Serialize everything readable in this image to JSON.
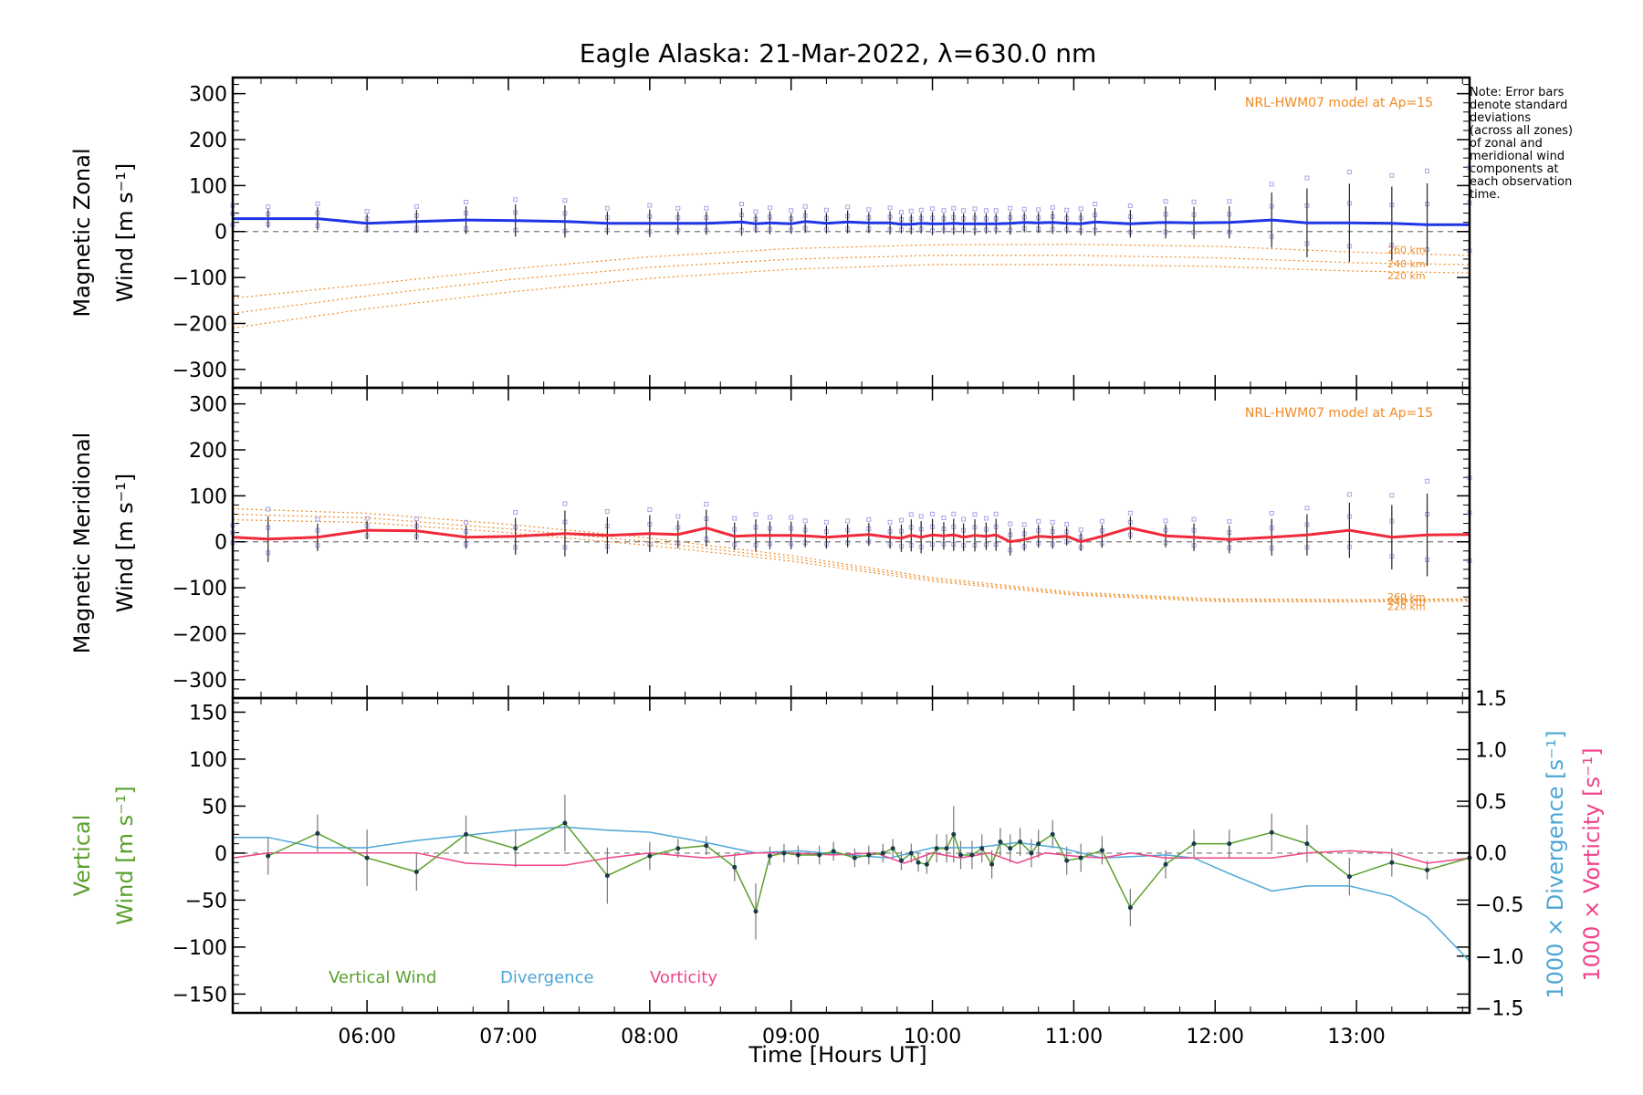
{
  "chart_data": {
    "type": "line",
    "title": "Eagle Alaska: 21-Mar-2022, λ=630.0 nm",
    "note": [
      "Note: Error bars",
      "denote standard",
      "deviations",
      "(across all zones)",
      "of zonal and",
      "meridional wind",
      "components at",
      "each observation",
      "time."
    ],
    "xlabel": "Time [Hours UT]",
    "xlim": [
      5.05,
      13.8
    ],
    "xticks": [
      6,
      7,
      8,
      9,
      10,
      11,
      12,
      13
    ],
    "xtick_labels": [
      "06:00",
      "07:00",
      "08:00",
      "09:00",
      "10:00",
      "11:00",
      "12:00",
      "13:00"
    ],
    "colors": {
      "zonal": "#1f35e6",
      "meridional": "#f02a3a",
      "model": "#f08a24",
      "vertical": "#5aa02c",
      "divergence": "#4da6d6",
      "vorticity": "#f0448a",
      "zone_points": "#a9a3e8",
      "error_bar": "#222222"
    },
    "panels": [
      {
        "id": "zonal",
        "ylabel_line1": "Magnetic Zonal",
        "ylabel_line2": "Wind [m s⁻¹]",
        "ylim": [
          -340,
          335
        ],
        "yticks": [
          -300,
          -200,
          -100,
          0,
          100,
          200,
          300
        ],
        "ytick_labels": [
          "−300",
          "−200",
          "−100",
          "0",
          "100",
          "200",
          "300"
        ],
        "model_label": "NRL-HWM07 model at Ap=15",
        "altitude_labels": [
          "260 km",
          "240 km",
          "220 km"
        ],
        "series": {
          "x": [
            5.05,
            5.3,
            5.65,
            6.0,
            6.35,
            6.7,
            7.05,
            7.4,
            7.7,
            8.0,
            8.2,
            8.4,
            8.65,
            8.75,
            8.85,
            9.0,
            9.1,
            9.25,
            9.4,
            9.55,
            9.7,
            9.78,
            9.85,
            9.92,
            10.0,
            10.08,
            10.15,
            10.22,
            10.3,
            10.38,
            10.45,
            10.55,
            10.65,
            10.75,
            10.85,
            10.95,
            11.05,
            11.15,
            11.4,
            11.65,
            11.85,
            12.1,
            12.4,
            12.65,
            12.95,
            13.25,
            13.5,
            13.8
          ],
          "values": [
            28,
            28,
            28,
            18,
            22,
            25,
            24,
            22,
            18,
            18,
            18,
            18,
            21,
            17,
            19,
            17,
            22,
            18,
            21,
            19,
            19,
            16,
            16,
            18,
            17,
            17,
            18,
            17,
            17,
            17,
            17,
            18,
            20,
            19,
            20,
            18,
            17,
            21,
            17,
            20,
            19,
            20,
            25,
            19,
            19,
            18,
            15,
            15
          ],
          "error": [
            22,
            20,
            25,
            20,
            25,
            30,
            35,
            35,
            25,
            30,
            25,
            25,
            30,
            20,
            25,
            22,
            25,
            22,
            25,
            22,
            25,
            20,
            22,
            22,
            25,
            22,
            25,
            22,
            25,
            22,
            22,
            25,
            22,
            22,
            25,
            22,
            25,
            30,
            30,
            35,
            35,
            35,
            60,
            75,
            85,
            80,
            90,
            95
          ]
        },
        "models": [
          {
            "altitude": "260 km",
            "x": [
              5.05,
              6,
              7,
              8,
              9,
              10,
              11,
              12,
              13,
              13.8
            ],
            "values": [
              -145,
              -115,
              -82,
              -55,
              -37,
              -29,
              -28,
              -32,
              -45,
              -52
            ]
          },
          {
            "altitude": "240 km",
            "x": [
              5.05,
              6,
              7,
              8,
              9,
              10,
              11,
              12,
              13,
              13.8
            ],
            "values": [
              -178,
              -140,
              -105,
              -78,
              -60,
              -52,
              -52,
              -57,
              -68,
              -72
            ]
          },
          {
            "altitude": "220 km",
            "x": [
              5.05,
              6,
              7,
              8,
              9,
              10,
              11,
              12,
              13,
              13.8
            ],
            "values": [
              -210,
              -168,
              -132,
              -102,
              -82,
              -72,
              -72,
              -76,
              -86,
              -90
            ]
          }
        ]
      },
      {
        "id": "meridional",
        "ylabel_line1": "Magnetic Meridional",
        "ylabel_line2": "Wind [m s⁻¹]",
        "ylim": [
          -340,
          335
        ],
        "yticks": [
          -300,
          -200,
          -100,
          0,
          100,
          200,
          300
        ],
        "ytick_labels": [
          "−300",
          "−200",
          "−100",
          "0",
          "100",
          "200",
          "300"
        ],
        "model_label": "NRL-HWM07 model at Ap=15",
        "altitude_labels": [
          "260 km",
          "240 km",
          "220 km"
        ],
        "series": {
          "x": [
            5.05,
            5.3,
            5.65,
            6.0,
            6.35,
            6.7,
            7.05,
            7.4,
            7.7,
            8.0,
            8.2,
            8.4,
            8.6,
            8.75,
            8.85,
            9.0,
            9.1,
            9.25,
            9.4,
            9.55,
            9.7,
            9.78,
            9.85,
            9.92,
            10.0,
            10.08,
            10.15,
            10.22,
            10.3,
            10.38,
            10.45,
            10.55,
            10.65,
            10.75,
            10.85,
            10.95,
            11.05,
            11.2,
            11.4,
            11.65,
            11.85,
            12.1,
            12.4,
            12.65,
            12.95,
            13.25,
            13.5,
            13.8
          ],
          "values": [
            10,
            6,
            10,
            25,
            24,
            10,
            12,
            18,
            14,
            18,
            16,
            30,
            12,
            14,
            14,
            14,
            13,
            10,
            13,
            16,
            10,
            8,
            14,
            10,
            15,
            13,
            15,
            10,
            14,
            12,
            15,
            0,
            5,
            12,
            10,
            12,
            0,
            12,
            30,
            13,
            10,
            5,
            10,
            15,
            25,
            10,
            15,
            16
          ],
          "error": [
            20,
            50,
            30,
            20,
            20,
            25,
            40,
            50,
            40,
            40,
            30,
            40,
            30,
            35,
            30,
            30,
            25,
            25,
            25,
            25,
            25,
            30,
            35,
            35,
            35,
            30,
            35,
            30,
            35,
            30,
            35,
            30,
            25,
            25,
            25,
            20,
            20,
            25,
            25,
            25,
            30,
            30,
            40,
            45,
            60,
            70,
            90,
            95
          ]
        },
        "models": [
          {
            "altitude": "260 km",
            "x": [
              5.05,
              6,
              7,
              8,
              9,
              10,
              11,
              12,
              13,
              13.8
            ],
            "values": [
              72,
              62,
              38,
              8,
              -30,
              -78,
              -110,
              -124,
              -126,
              -124
            ]
          },
          {
            "altitude": "240 km",
            "x": [
              5.05,
              6,
              7,
              8,
              9,
              10,
              11,
              12,
              13,
              13.8
            ],
            "values": [
              60,
              52,
              28,
              0,
              -36,
              -82,
              -113,
              -127,
              -128,
              -126
            ]
          },
          {
            "altitude": "220 km",
            "x": [
              5.05,
              6,
              7,
              8,
              9,
              10,
              11,
              12,
              13,
              13.8
            ],
            "values": [
              48,
              42,
              20,
              -8,
              -42,
              -86,
              -116,
              -130,
              -131,
              -129
            ]
          }
        ]
      },
      {
        "id": "vertical",
        "ylabel_line1": "Vertical",
        "ylabel_line2_prefix": "Wind ",
        "ylabel_line2_unit": "[m s⁻¹]",
        "ylim": [
          -170,
          165
        ],
        "yticks": [
          -150,
          -100,
          -50,
          0,
          50,
          100,
          150
        ],
        "ytick_labels": [
          "−150",
          "−100",
          "−50",
          "0",
          "50",
          "100",
          "150"
        ],
        "right_ylim": [
          -1.55,
          1.5
        ],
        "right_yticks": [
          -1.5,
          -1.0,
          -0.5,
          0.0,
          0.5,
          1.0,
          1.5
        ],
        "right_ytick_labels": [
          "−1.5",
          "−1.0",
          "−0.5",
          "0.0",
          "0.5",
          "1.0",
          "1.5"
        ],
        "right_ylabel_div_prefix": "1000 × Divergence ",
        "right_ylabel_div_unit": "[s⁻¹]",
        "right_ylabel_vort_prefix": "1000 × Vorticity ",
        "right_ylabel_vort_unit": "[s⁻¹]",
        "legend": [
          "Vertical Wind",
          "Divergence",
          "Vorticity"
        ],
        "vertical_wind": {
          "x": [
            5.3,
            5.65,
            6.0,
            6.35,
            6.7,
            7.05,
            7.4,
            7.7,
            8.0,
            8.2,
            8.4,
            8.6,
            8.75,
            8.85,
            8.95,
            9.05,
            9.2,
            9.3,
            9.45,
            9.55,
            9.65,
            9.72,
            9.78,
            9.85,
            9.9,
            9.96,
            10.03,
            10.1,
            10.15,
            10.2,
            10.28,
            10.35,
            10.42,
            10.48,
            10.55,
            10.62,
            10.7,
            10.75,
            10.85,
            10.95,
            11.05,
            11.2,
            11.4,
            11.65,
            11.85,
            12.1,
            12.4,
            12.65,
            12.95,
            13.25,
            13.5,
            13.8
          ],
          "values": [
            -3,
            21,
            -5,
            -20,
            20,
            5,
            32,
            -24,
            -3,
            5,
            8,
            -15,
            -62,
            -3,
            0,
            -2,
            -2,
            2,
            -5,
            -2,
            0,
            5,
            -8,
            0,
            -10,
            -12,
            5,
            5,
            20,
            -2,
            -2,
            5,
            -12,
            12,
            5,
            12,
            0,
            10,
            20,
            -8,
            -5,
            3,
            -58,
            -12,
            10,
            10,
            22,
            10,
            -25,
            -10,
            -18,
            -5
          ],
          "error": [
            20,
            20,
            30,
            20,
            20,
            20,
            30,
            30,
            15,
            10,
            10,
            15,
            30,
            10,
            10,
            10,
            10,
            10,
            10,
            10,
            10,
            10,
            10,
            10,
            10,
            10,
            15,
            15,
            30,
            15,
            15,
            15,
            15,
            15,
            15,
            15,
            15,
            15,
            15,
            15,
            15,
            15,
            20,
            15,
            15,
            15,
            20,
            20,
            20,
            15,
            10,
            10
          ]
        },
        "divergence": {
          "x": [
            5.05,
            5.3,
            5.65,
            6.0,
            6.35,
            6.7,
            7.05,
            7.4,
            7.7,
            8.0,
            8.4,
            8.75,
            9.05,
            9.4,
            9.7,
            10.0,
            10.3,
            10.6,
            10.9,
            11.2,
            11.65,
            11.85,
            12.1,
            12.4,
            12.65,
            12.95,
            13.25,
            13.5,
            13.8
          ],
          "values": [
            0.15,
            0.15,
            0.05,
            0.05,
            0.12,
            0.17,
            0.22,
            0.25,
            0.22,
            0.2,
            0.1,
            0.0,
            0.02,
            -0.02,
            -0.05,
            0.05,
            0.05,
            0.1,
            0.05,
            -0.05,
            -0.02,
            -0.05,
            -0.2,
            -0.37,
            -0.32,
            -0.32,
            -0.42,
            -0.62,
            -1.05
          ]
        },
        "vorticity": {
          "x": [
            5.05,
            5.3,
            5.65,
            6.0,
            6.35,
            6.7,
            7.05,
            7.4,
            7.7,
            8.0,
            8.4,
            8.75,
            9.0,
            9.3,
            9.6,
            9.8,
            10.0,
            10.2,
            10.4,
            10.6,
            10.8,
            11.0,
            11.2,
            11.4,
            11.65,
            11.85,
            12.1,
            12.4,
            12.65,
            12.95,
            13.25,
            13.5,
            13.8
          ],
          "values": [
            -0.05,
            0.0,
            0.0,
            0.0,
            0.0,
            -0.1,
            -0.12,
            -0.12,
            -0.05,
            0.0,
            -0.05,
            0.0,
            0.0,
            -0.02,
            0.0,
            -0.1,
            0.0,
            -0.05,
            0.0,
            -0.1,
            0.0,
            -0.03,
            -0.05,
            0.0,
            -0.05,
            -0.05,
            -0.05,
            -0.05,
            0.0,
            0.02,
            0.0,
            -0.1,
            -0.05
          ]
        }
      }
    ]
  }
}
